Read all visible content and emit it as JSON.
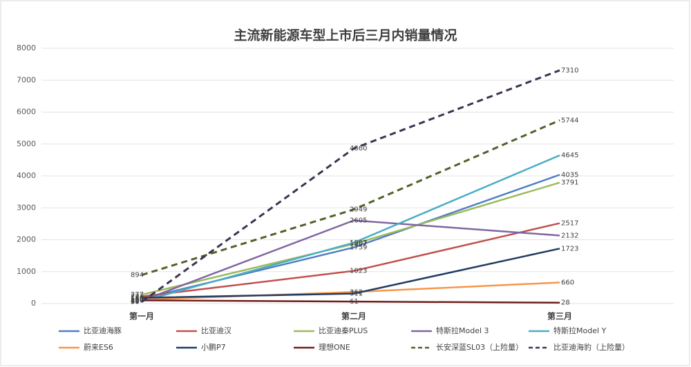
{
  "chart_data": {
    "type": "line",
    "title": "主流新能源车型上市后三月内销量情况",
    "categories": [
      "第一月",
      "第二月",
      "第三月"
    ],
    "series": [
      {
        "name": "比亚迪海豚",
        "color": "#4f7ec2",
        "dash": false,
        "values": [
          146,
          1759,
          4035
        ]
      },
      {
        "name": "比亚迪汉",
        "color": "#c0504d",
        "dash": false,
        "values": [
          222,
          1023,
          2517
        ]
      },
      {
        "name": "比亚迪秦PLUS",
        "color": "#9bbb59",
        "dash": false,
        "values": [
          277,
          1867,
          3791
        ]
      },
      {
        "name": "特斯拉Model 3",
        "color": "#8064a2",
        "dash": false,
        "values": [
          89,
          2605,
          2132
        ]
      },
      {
        "name": "特斯拉Model Y",
        "color": "#4bacc6",
        "dash": false,
        "values": [
          69,
          1907,
          4645
        ]
      },
      {
        "name": "蔚来ES6",
        "color": "#f79646",
        "dash": false,
        "values": [
          120,
          362,
          660
        ]
      },
      {
        "name": "小鹏P7",
        "color": "#1f3c64",
        "dash": false,
        "values": [
          180,
          311,
          1723
        ]
      },
      {
        "name": "理想ONE",
        "color": "#6e1f1c",
        "dash": false,
        "values": [
          100,
          61,
          28
        ]
      },
      {
        "name": "长安深蓝SL03（上险量）",
        "color": "#4f6228",
        "dash": true,
        "values": [
          894,
          2949,
          5744
        ]
      },
      {
        "name": "比亚迪海豹（上险量）",
        "color": "#3f3151",
        "dash": true,
        "values": [
          50,
          4860,
          7310
        ]
      }
    ],
    "ylim": [
      0,
      8000
    ],
    "yticks": [
      0,
      1000,
      2000,
      3000,
      4000,
      5000,
      6000,
      7000,
      8000
    ],
    "grid": true
  }
}
